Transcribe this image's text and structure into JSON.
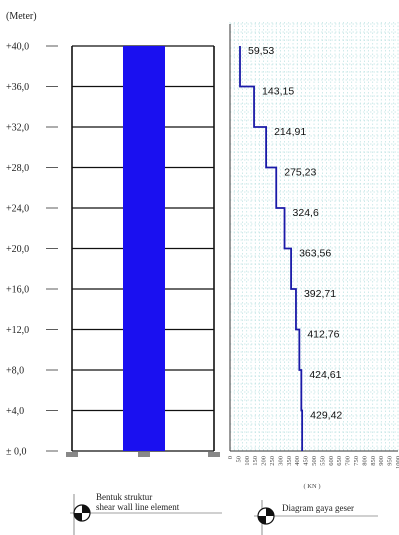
{
  "unit_label": "(Meter)",
  "elevations": [
    "+40,0",
    "+36,0",
    "+32,0",
    "+28,0",
    "+24,0",
    "+20,0",
    "+16,0",
    "+12,0",
    "+8,0",
    "+4,0",
    "± 0,0"
  ],
  "diagram_levels_m": [
    40,
    36,
    32,
    28,
    24,
    20,
    16,
    12,
    8,
    4,
    0
  ],
  "shear_values_kn": [
    59.53,
    143.15,
    214.91,
    275.23,
    324.6,
    363.56,
    392.71,
    412.76,
    424.61,
    429.42
  ],
  "shear_labels": [
    "59,53",
    "143,15",
    "214,91",
    "275,23",
    "324,6",
    "363,56",
    "392,71",
    "412,76",
    "424,61",
    "429,42"
  ],
  "x_ticks": [
    "0",
    "50",
    "100",
    "150",
    "200",
    "250",
    "300",
    "350",
    "400",
    "450",
    "500",
    "550",
    "600",
    "650",
    "700",
    "750",
    "800",
    "850",
    "900",
    "950",
    "1000"
  ],
  "x_unit": "( KN )",
  "left_caption": {
    "line1": "Bentuk struktur",
    "line2": "shear wall line element"
  },
  "right_caption": "Diagram gaya geser",
  "colors": {
    "wall": "#1a10f0",
    "diagram": "#1a1aa8",
    "grid": "#9fd6d6"
  }
}
